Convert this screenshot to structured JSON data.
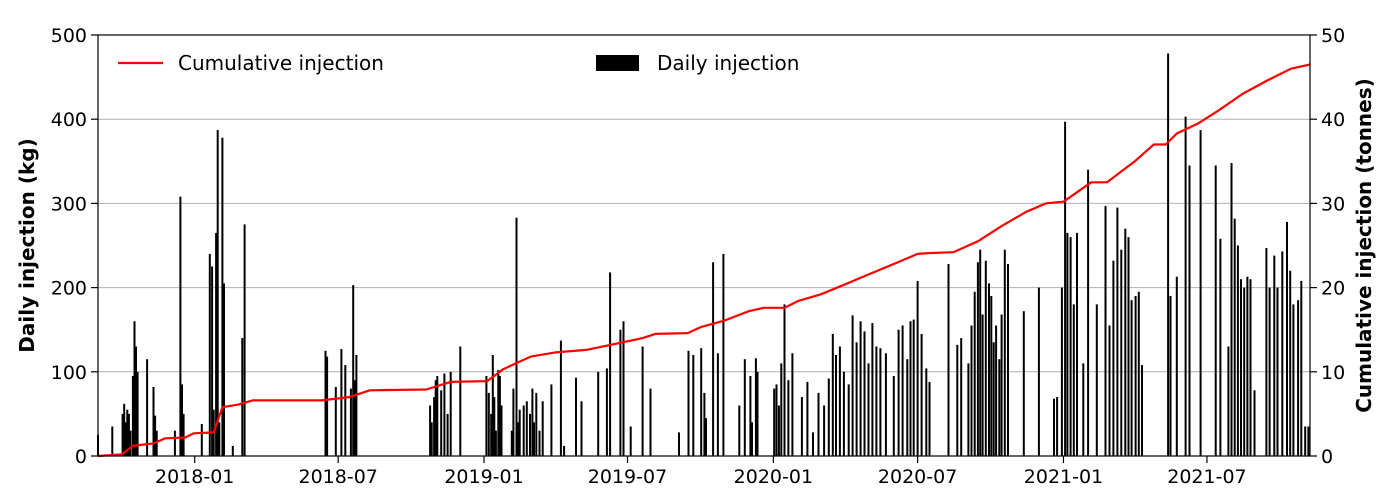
{
  "chart_data": {
    "type": "bar+line",
    "title": "",
    "x_axis": {
      "type": "date",
      "range": [
        "2017-09-01",
        "2021-11-08"
      ],
      "tick_labels": [
        "2018-01",
        "2018-07",
        "2019-01",
        "2019-07",
        "2020-01",
        "2020-07",
        "2021-01",
        "2021-07"
      ],
      "tick_dates": [
        "2018-01-01",
        "2018-07-01",
        "2019-01-01",
        "2019-07-01",
        "2020-01-01",
        "2020-07-01",
        "2021-01-01",
        "2021-07-01"
      ]
    },
    "y_left": {
      "label": "Daily injection (kg)",
      "ylim": [
        0,
        500
      ],
      "ticks": [
        "0",
        "100",
        "200",
        "300",
        "400",
        "500"
      ]
    },
    "y_right": {
      "label": "Cumulative injection (tonnes)",
      "ylim": [
        0,
        50
      ],
      "ticks": [
        "0",
        "10",
        "20",
        "30",
        "40",
        "50"
      ]
    },
    "grid": "horizontal",
    "legend": {
      "placement": "top",
      "entries": [
        {
          "name": "Cumulative injection",
          "kind": "line",
          "color": "#ff0000"
        },
        {
          "name": "Daily injection",
          "kind": "bar",
          "color": "#000000"
        }
      ]
    },
    "series": [
      {
        "name": "Daily injection",
        "type": "bar",
        "axis": "left",
        "color": "#000000",
        "points": [
          [
            "2017-09-01",
            25
          ],
          [
            "2017-09-19",
            35
          ],
          [
            "2017-10-02",
            50
          ],
          [
            "2017-10-04",
            62
          ],
          [
            "2017-10-06",
            40
          ],
          [
            "2017-10-08",
            55
          ],
          [
            "2017-10-10",
            50
          ],
          [
            "2017-10-12",
            30
          ],
          [
            "2017-10-15",
            95
          ],
          [
            "2017-10-17",
            160
          ],
          [
            "2017-10-19",
            130
          ],
          [
            "2017-10-21",
            100
          ],
          [
            "2017-11-02",
            115
          ],
          [
            "2017-11-10",
            82
          ],
          [
            "2017-11-12",
            48
          ],
          [
            "2017-11-14",
            30
          ],
          [
            "2017-12-07",
            30
          ],
          [
            "2017-12-14",
            308
          ],
          [
            "2017-12-16",
            85
          ],
          [
            "2017-12-18",
            50
          ],
          [
            "2018-01-10",
            38
          ],
          [
            "2018-01-20",
            240
          ],
          [
            "2018-01-23",
            225
          ],
          [
            "2018-01-25",
            55
          ],
          [
            "2018-01-28",
            265
          ],
          [
            "2018-01-30",
            387
          ],
          [
            "2018-02-01",
            40
          ],
          [
            "2018-02-05",
            378
          ],
          [
            "2018-02-07",
            205
          ],
          [
            "2018-02-18",
            12
          ],
          [
            "2018-03-02",
            140
          ],
          [
            "2018-03-05",
            275
          ],
          [
            "2018-06-15",
            125
          ],
          [
            "2018-06-17",
            118
          ],
          [
            "2018-06-28",
            82
          ],
          [
            "2018-07-05",
            127
          ],
          [
            "2018-07-10",
            108
          ],
          [
            "2018-07-17",
            80
          ],
          [
            "2018-07-20",
            203
          ],
          [
            "2018-07-22",
            90
          ],
          [
            "2018-07-24",
            120
          ],
          [
            "2018-10-25",
            60
          ],
          [
            "2018-10-27",
            40
          ],
          [
            "2018-10-30",
            70
          ],
          [
            "2018-11-01",
            90
          ],
          [
            "2018-11-03",
            95
          ],
          [
            "2018-11-08",
            78
          ],
          [
            "2018-11-12",
            98
          ],
          [
            "2018-11-16",
            50
          ],
          [
            "2018-11-20",
            100
          ],
          [
            "2018-12-02",
            130
          ],
          [
            "2019-01-04",
            95
          ],
          [
            "2019-01-07",
            75
          ],
          [
            "2019-01-10",
            50
          ],
          [
            "2019-01-12",
            120
          ],
          [
            "2019-01-14",
            70
          ],
          [
            "2019-01-16",
            30
          ],
          [
            "2019-01-19",
            102
          ],
          [
            "2019-01-21",
            95
          ],
          [
            "2019-01-23",
            60
          ],
          [
            "2019-02-05",
            30
          ],
          [
            "2019-02-07",
            80
          ],
          [
            "2019-02-11",
            283
          ],
          [
            "2019-02-13",
            40
          ],
          [
            "2019-02-15",
            55
          ],
          [
            "2019-02-20",
            60
          ],
          [
            "2019-02-24",
            65
          ],
          [
            "2019-02-28",
            50
          ],
          [
            "2019-03-03",
            80
          ],
          [
            "2019-03-05",
            40
          ],
          [
            "2019-03-08",
            75
          ],
          [
            "2019-03-12",
            30
          ],
          [
            "2019-03-16",
            65
          ],
          [
            "2019-03-27",
            85
          ],
          [
            "2019-04-08",
            137
          ],
          [
            "2019-04-12",
            12
          ],
          [
            "2019-04-27",
            93
          ],
          [
            "2019-05-04",
            65
          ],
          [
            "2019-05-25",
            100
          ],
          [
            "2019-06-05",
            104
          ],
          [
            "2019-06-09",
            218
          ],
          [
            "2019-06-22",
            150
          ],
          [
            "2019-06-26",
            160
          ],
          [
            "2019-07-05",
            35
          ],
          [
            "2019-07-20",
            130
          ],
          [
            "2019-07-30",
            80
          ],
          [
            "2019-09-04",
            28
          ],
          [
            "2019-09-16",
            125
          ],
          [
            "2019-09-22",
            120
          ],
          [
            "2019-10-02",
            128
          ],
          [
            "2019-10-06",
            75
          ],
          [
            "2019-10-08",
            45
          ],
          [
            "2019-10-17",
            230
          ],
          [
            "2019-10-23",
            122
          ],
          [
            "2019-10-30",
            240
          ],
          [
            "2019-11-19",
            60
          ],
          [
            "2019-11-26",
            115
          ],
          [
            "2019-12-03",
            95
          ],
          [
            "2019-12-05",
            40
          ],
          [
            "2019-12-10",
            116
          ],
          [
            "2019-12-12",
            100
          ],
          [
            "2020-01-02",
            80
          ],
          [
            "2020-01-05",
            85
          ],
          [
            "2020-01-08",
            60
          ],
          [
            "2020-01-11",
            110
          ],
          [
            "2020-01-15",
            180
          ],
          [
            "2020-01-20",
            90
          ],
          [
            "2020-01-25",
            122
          ],
          [
            "2020-02-06",
            70
          ],
          [
            "2020-02-13",
            88
          ],
          [
            "2020-02-20",
            28
          ],
          [
            "2020-02-27",
            75
          ],
          [
            "2020-03-05",
            60
          ],
          [
            "2020-03-11",
            92
          ],
          [
            "2020-03-16",
            145
          ],
          [
            "2020-03-20",
            120
          ],
          [
            "2020-03-25",
            130
          ],
          [
            "2020-03-30",
            100
          ],
          [
            "2020-04-05",
            85
          ],
          [
            "2020-04-10",
            167
          ],
          [
            "2020-04-15",
            135
          ],
          [
            "2020-04-20",
            160
          ],
          [
            "2020-04-25",
            148
          ],
          [
            "2020-04-30",
            110
          ],
          [
            "2020-05-05",
            158
          ],
          [
            "2020-05-10",
            130
          ],
          [
            "2020-05-15",
            128
          ],
          [
            "2020-05-22",
            122
          ],
          [
            "2020-06-01",
            95
          ],
          [
            "2020-06-07",
            150
          ],
          [
            "2020-06-12",
            155
          ],
          [
            "2020-06-18",
            115
          ],
          [
            "2020-06-22",
            160
          ],
          [
            "2020-06-26",
            162
          ],
          [
            "2020-07-01",
            208
          ],
          [
            "2020-07-06",
            145
          ],
          [
            "2020-07-12",
            104
          ],
          [
            "2020-07-16",
            88
          ],
          [
            "2020-08-09",
            228
          ],
          [
            "2020-08-20",
            132
          ],
          [
            "2020-08-25",
            140
          ],
          [
            "2020-09-03",
            110
          ],
          [
            "2020-09-07",
            155
          ],
          [
            "2020-09-11",
            195
          ],
          [
            "2020-09-15",
            230
          ],
          [
            "2020-09-18",
            245
          ],
          [
            "2020-09-21",
            168
          ],
          [
            "2020-09-25",
            232
          ],
          [
            "2020-09-29",
            205
          ],
          [
            "2020-10-02",
            190
          ],
          [
            "2020-10-05",
            135
          ],
          [
            "2020-10-08",
            155
          ],
          [
            "2020-10-12",
            115
          ],
          [
            "2020-10-15",
            168
          ],
          [
            "2020-10-19",
            245
          ],
          [
            "2020-10-23",
            228
          ],
          [
            "2020-11-12",
            172
          ],
          [
            "2020-12-01",
            200
          ],
          [
            "2020-12-20",
            68
          ],
          [
            "2020-12-24",
            70
          ],
          [
            "2020-12-30",
            200
          ],
          [
            "2021-01-03",
            397
          ],
          [
            "2021-01-06",
            265
          ],
          [
            "2021-01-10",
            260
          ],
          [
            "2021-01-14",
            180
          ],
          [
            "2021-01-18",
            265
          ],
          [
            "2021-01-26",
            110
          ],
          [
            "2021-02-01",
            340
          ],
          [
            "2021-02-12",
            180
          ],
          [
            "2021-02-23",
            297
          ],
          [
            "2021-02-28",
            155
          ],
          [
            "2021-03-05",
            232
          ],
          [
            "2021-03-10",
            295
          ],
          [
            "2021-03-15",
            245
          ],
          [
            "2021-03-20",
            270
          ],
          [
            "2021-03-24",
            260
          ],
          [
            "2021-03-28",
            185
          ],
          [
            "2021-04-02",
            190
          ],
          [
            "2021-04-06",
            195
          ],
          [
            "2021-04-10",
            108
          ],
          [
            "2021-05-13",
            478
          ],
          [
            "2021-05-16",
            190
          ],
          [
            "2021-05-24",
            213
          ],
          [
            "2021-06-04",
            403
          ],
          [
            "2021-06-09",
            345
          ],
          [
            "2021-06-23",
            387
          ],
          [
            "2021-07-12",
            345
          ],
          [
            "2021-07-18",
            258
          ],
          [
            "2021-07-28",
            130
          ],
          [
            "2021-08-01",
            348
          ],
          [
            "2021-08-05",
            282
          ],
          [
            "2021-08-09",
            250
          ],
          [
            "2021-08-13",
            210
          ],
          [
            "2021-08-17",
            200
          ],
          [
            "2021-08-21",
            213
          ],
          [
            "2021-08-25",
            210
          ],
          [
            "2021-08-30",
            78
          ],
          [
            "2021-09-14",
            247
          ],
          [
            "2021-09-18",
            200
          ],
          [
            "2021-09-24",
            238
          ],
          [
            "2021-09-28",
            200
          ],
          [
            "2021-10-04",
            243
          ],
          [
            "2021-10-10",
            278
          ],
          [
            "2021-10-14",
            220
          ],
          [
            "2021-10-18",
            180
          ],
          [
            "2021-10-24",
            185
          ],
          [
            "2021-10-28",
            208
          ],
          [
            "2021-11-02",
            35
          ],
          [
            "2021-11-06",
            35
          ]
        ]
      },
      {
        "name": "Cumulative injection",
        "type": "line",
        "axis": "right",
        "color": "#ff0000",
        "points": [
          [
            "2017-09-01",
            0
          ],
          [
            "2017-10-01",
            0.2
          ],
          [
            "2017-10-15",
            1.2
          ],
          [
            "2017-11-10",
            1.5
          ],
          [
            "2017-11-25",
            2.1
          ],
          [
            "2017-12-20",
            2.2
          ],
          [
            "2017-12-31",
            2.7
          ],
          [
            "2018-01-25",
            2.8
          ],
          [
            "2018-02-05",
            5.8
          ],
          [
            "2018-02-25",
            6.1
          ],
          [
            "2018-03-15",
            6.6
          ],
          [
            "2018-06-10",
            6.6
          ],
          [
            "2018-07-15",
            7.0
          ],
          [
            "2018-08-10",
            7.8
          ],
          [
            "2018-10-20",
            7.9
          ],
          [
            "2018-11-20",
            8.8
          ],
          [
            "2019-01-05",
            8.9
          ],
          [
            "2019-01-25",
            10.3
          ],
          [
            "2019-02-10",
            11.0
          ],
          [
            "2019-03-01",
            11.8
          ],
          [
            "2019-04-01",
            12.3
          ],
          [
            "2019-05-10",
            12.6
          ],
          [
            "2019-06-15",
            13.3
          ],
          [
            "2019-07-20",
            14.0
          ],
          [
            "2019-08-05",
            14.5
          ],
          [
            "2019-09-15",
            14.6
          ],
          [
            "2019-10-01",
            15.3
          ],
          [
            "2019-11-01",
            16.1
          ],
          [
            "2019-12-01",
            17.2
          ],
          [
            "2019-12-20",
            17.6
          ],
          [
            "2020-01-15",
            17.6
          ],
          [
            "2020-02-01",
            18.4
          ],
          [
            "2020-03-01",
            19.2
          ],
          [
            "2020-04-01",
            20.4
          ],
          [
            "2020-05-01",
            21.6
          ],
          [
            "2020-06-01",
            22.8
          ],
          [
            "2020-07-01",
            24.0
          ],
          [
            "2020-07-15",
            24.1
          ],
          [
            "2020-08-15",
            24.2
          ],
          [
            "2020-09-15",
            25.5
          ],
          [
            "2020-10-15",
            27.3
          ],
          [
            "2020-11-15",
            29.0
          ],
          [
            "2020-12-10",
            30.0
          ],
          [
            "2021-01-01",
            30.2
          ],
          [
            "2021-02-05",
            32.5
          ],
          [
            "2021-02-25",
            32.5
          ],
          [
            "2021-04-01",
            35.0
          ],
          [
            "2021-04-25",
            37.0
          ],
          [
            "2021-05-10",
            37.0
          ],
          [
            "2021-05-24",
            38.3
          ],
          [
            "2021-06-20",
            39.5
          ],
          [
            "2021-07-15",
            41.0
          ],
          [
            "2021-08-15",
            43.0
          ],
          [
            "2021-09-15",
            44.6
          ],
          [
            "2021-10-15",
            46.0
          ],
          [
            "2021-11-08",
            46.5
          ]
        ]
      }
    ]
  }
}
